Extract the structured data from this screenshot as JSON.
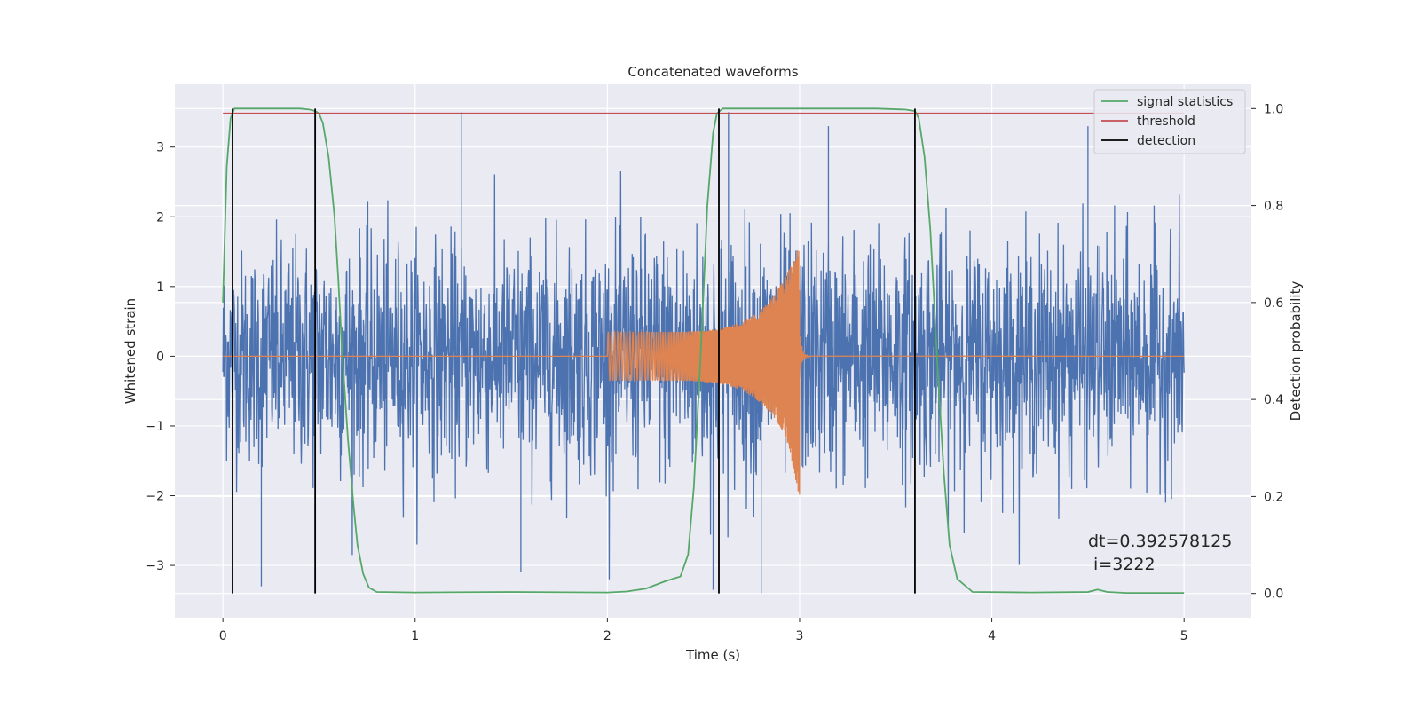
{
  "chart_data": {
    "type": "line",
    "title": "Concatenated waveforms",
    "xlabel": "Time (s)",
    "ylabel": "Whitened strain",
    "y2label": "Detection probability",
    "xlim": [
      -0.25,
      5.35
    ],
    "ylim": [
      -3.75,
      3.9
    ],
    "y2lim": [
      -0.05,
      1.05
    ],
    "x_ticks": [
      0,
      1,
      2,
      3,
      4,
      5
    ],
    "x_tick_labels": [
      "0",
      "1",
      "2",
      "3",
      "4",
      "5"
    ],
    "y_ticks": [
      -3,
      -2,
      -1,
      0,
      1,
      2,
      3
    ],
    "y_tick_labels": [
      "−3",
      "−2",
      "−1",
      "0",
      "1",
      "2",
      "3"
    ],
    "y2_ticks": [
      0.0,
      0.2,
      0.4,
      0.6,
      0.8,
      1.0
    ],
    "y2_tick_labels": [
      "0.0",
      "0.2",
      "0.4",
      "0.6",
      "0.8",
      "1.0"
    ],
    "grid": true,
    "legend_position": "top-right",
    "colors": {
      "strain": "#4c72b0",
      "injected_signal": "#dd8452",
      "signal_statistics": "#55a868",
      "threshold": "#c44e52",
      "detection": "#000000",
      "plot_bg": "#eaeaf2",
      "grid": "#ffffff"
    },
    "series": [
      {
        "name": "signal statistics",
        "axis": "right",
        "x": [
          0.0,
          0.02,
          0.04,
          0.06,
          0.1,
          0.2,
          0.3,
          0.4,
          0.45,
          0.48,
          0.5,
          0.52,
          0.55,
          0.58,
          0.6,
          0.62,
          0.65,
          0.68,
          0.7,
          0.73,
          0.76,
          0.8,
          1.0,
          1.5,
          2.0,
          2.1,
          2.2,
          2.3,
          2.38,
          2.42,
          2.45,
          2.48,
          2.5,
          2.52,
          2.55,
          2.57,
          2.6,
          2.65,
          2.8,
          3.0,
          3.2,
          3.4,
          3.55,
          3.6,
          3.62,
          3.65,
          3.68,
          3.7,
          3.72,
          3.75,
          3.78,
          3.82,
          3.9,
          4.2,
          4.5,
          4.55,
          4.6,
          4.7,
          5.0
        ],
        "y": [
          0.6,
          0.88,
          0.98,
          1.0,
          1.0,
          1.0,
          1.0,
          1.0,
          0.998,
          0.995,
          0.99,
          0.97,
          0.9,
          0.78,
          0.65,
          0.5,
          0.32,
          0.18,
          0.1,
          0.04,
          0.012,
          0.003,
          0.002,
          0.003,
          0.002,
          0.004,
          0.01,
          0.025,
          0.035,
          0.08,
          0.22,
          0.45,
          0.62,
          0.8,
          0.95,
          0.99,
          1.0,
          1.0,
          1.0,
          1.0,
          1.0,
          1.0,
          0.998,
          0.995,
          0.98,
          0.9,
          0.75,
          0.6,
          0.45,
          0.25,
          0.1,
          0.03,
          0.003,
          0.002,
          0.003,
          0.008,
          0.003,
          0.001,
          0.001
        ]
      },
      {
        "name": "threshold",
        "axis": "right",
        "x": [
          0.0,
          5.0
        ],
        "y": [
          0.99,
          0.99
        ]
      },
      {
        "name": "detection",
        "axis": "right",
        "segments": [
          {
            "x": 0.05,
            "y": [
              0.0,
              1.0
            ]
          },
          {
            "x": 0.48,
            "y": [
              0.0,
              1.0
            ]
          },
          {
            "x": 2.58,
            "y": [
              0.0,
              1.0
            ]
          },
          {
            "x": 3.6,
            "y": [
              0.0,
              1.0
            ]
          }
        ]
      }
    ],
    "strain_envelope": {
      "x": [
        0.0,
        0.5,
        1.0,
        1.5,
        2.0,
        2.5,
        3.0,
        3.5,
        4.0,
        4.5,
        5.0
      ],
      "amplitude": [
        2.1,
        2.4,
        2.3,
        2.3,
        2.4,
        2.6,
        2.5,
        2.4,
        2.3,
        2.3,
        2.3
      ],
      "peaks": [
        {
          "x": 1.24,
          "y": 3.5
        },
        {
          "x": 2.63,
          "y": 3.5
        },
        {
          "x": 2.55,
          "y": -3.35
        },
        {
          "x": 2.8,
          "y": -3.4
        },
        {
          "x": 0.2,
          "y": -3.3
        },
        {
          "x": 1.55,
          "y": -3.1
        },
        {
          "x": 3.15,
          "y": 3.3
        },
        {
          "x": 4.5,
          "y": 3.3
        }
      ]
    },
    "injected_chirp": {
      "x_start": 2.0,
      "x_end": 3.0,
      "amplitude_start": 0.35,
      "amplitude_peak": 1.6,
      "amplitude_peak_negative": -2.1
    },
    "legend": [
      "signal statistics",
      "threshold",
      "detection"
    ],
    "annotation": {
      "line1": "dt=0.392578125",
      "line2": " i=3222"
    }
  }
}
